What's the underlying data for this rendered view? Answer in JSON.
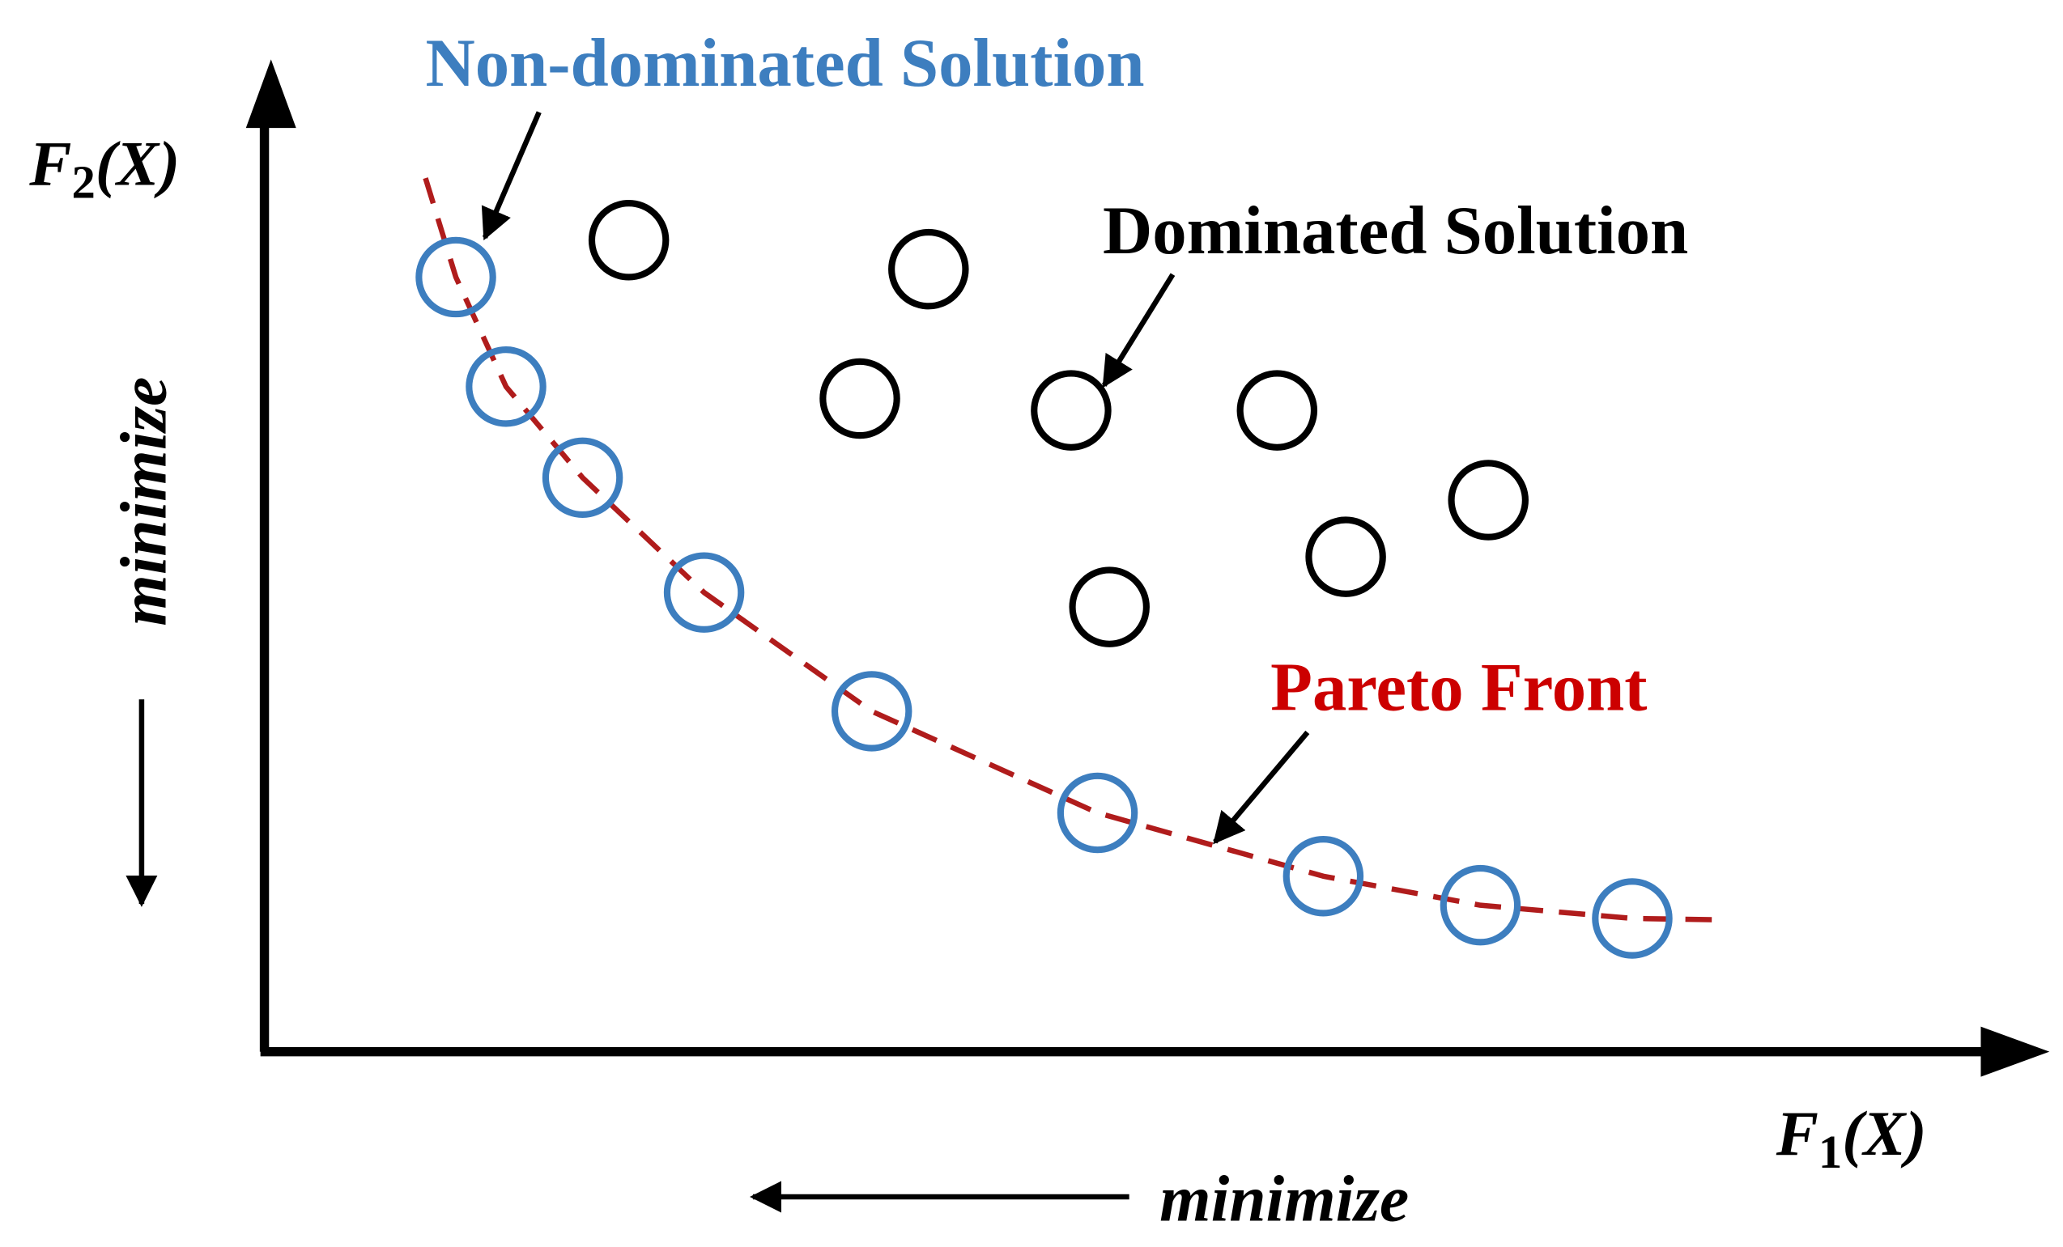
{
  "labels": {
    "non_dominated": "Non-dominated Solution",
    "dominated": "Dominated Solution",
    "pareto_front": "Pareto Front",
    "y_axis": {
      "base": "F",
      "subscript": "2",
      "arg": "(X)"
    },
    "x_axis": {
      "base": "F",
      "subscript": "1",
      "arg": "(X)"
    },
    "y_direction": "minimize",
    "x_direction": "minimize"
  }
}
